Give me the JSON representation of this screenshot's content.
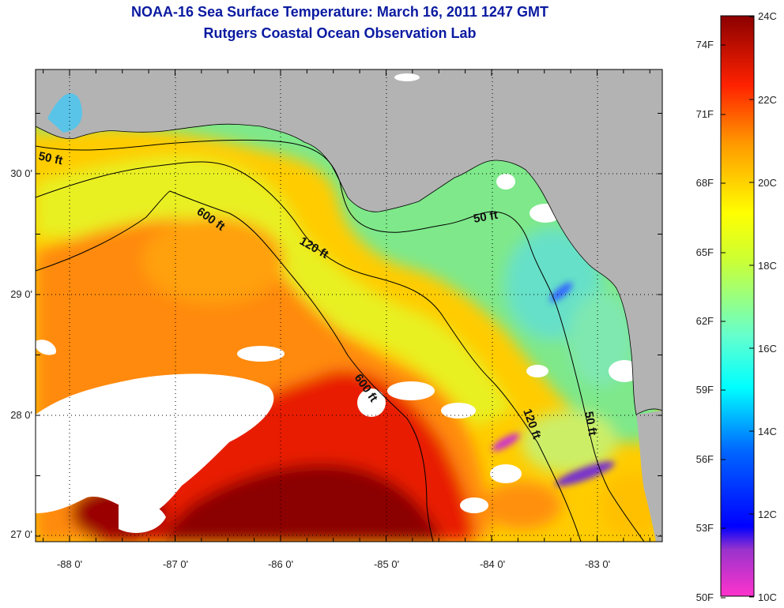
{
  "header": {
    "title_line1": "NOAA-16 Sea Surface Temperature:  March 16, 2011 1247 GMT",
    "title_line2": "Rutgers Coastal Ocean Observation Lab"
  },
  "map": {
    "lon_ticks": [
      "-88 0'",
      "-87 0'",
      "-86 0'",
      "-85 0'",
      "-84 0'",
      "-83 0'"
    ],
    "lat_ticks": [
      "30 0'",
      "29 0'",
      "28 0'",
      "27 0'"
    ],
    "contour_labels": [
      "50 ft",
      "600 ft",
      "120 ft",
      "50 ft",
      "600 ft",
      "120 ft",
      "50 ft"
    ],
    "colors": {
      "land": "#b3b3b3",
      "cloud": "#ffffff",
      "warm": "#8b0000",
      "cool": "#66e8b0"
    }
  },
  "colorbar": {
    "f_labels": [
      "74F",
      "71F",
      "68F",
      "65F",
      "62F",
      "59F",
      "56F",
      "53F",
      "50F"
    ],
    "c_labels": [
      "24C",
      "22C",
      "20C",
      "18C",
      "16C",
      "14C",
      "12C",
      "10C"
    ],
    "range_c": [
      10,
      24
    ],
    "range_f": [
      50,
      75.2
    ]
  }
}
